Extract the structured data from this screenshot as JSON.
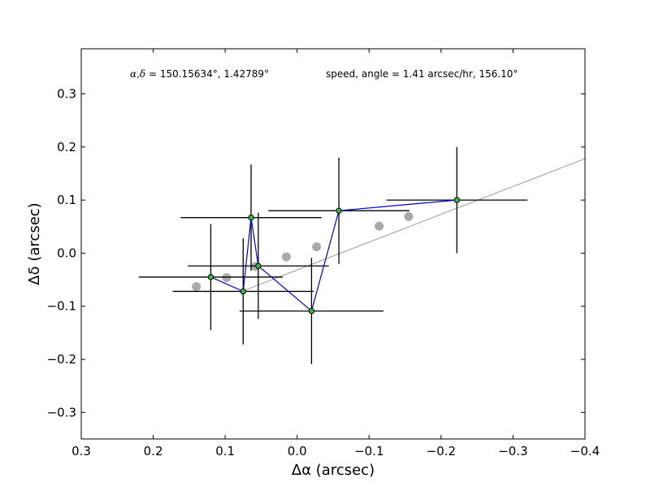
{
  "chart_data": {
    "type": "scatter",
    "xlabel": "Δα (arcsec)",
    "ylabel": "Δδ (arcsec)",
    "xlim": [
      0.3,
      -0.4
    ],
    "ylim": [
      -0.35,
      0.385
    ],
    "x_axis_inverted": true,
    "grid": false,
    "x_ticks": [
      0.3,
      0.2,
      0.1,
      0.0,
      -0.1,
      -0.2,
      -0.3,
      -0.4
    ],
    "x_tick_labels": [
      "0.3",
      "0.2",
      "0.1",
      "0.0",
      "−0.1",
      "−0.2",
      "−0.3",
      "−0.4"
    ],
    "y_ticks": [
      -0.3,
      -0.2,
      -0.1,
      0.0,
      0.1,
      0.2,
      0.3
    ],
    "y_tick_labels": [
      "−0.3",
      "−0.2",
      "−0.1",
      "0.0",
      "0.1",
      "0.2",
      "0.3"
    ],
    "annotations": [
      {
        "id": "coords",
        "text": "α,δ = 150.15634°, 1.42789°"
      },
      {
        "id": "speed",
        "text": "speed, angle = 1.41 arcsec/hr, 156.10°"
      }
    ],
    "fit_line": {
      "color": "#999999",
      "points": [
        [
          0.075,
          -0.071
        ],
        [
          -0.4,
          0.178
        ]
      ]
    },
    "model_points": {
      "color": "#aaaaaa",
      "points": [
        [
          0.14,
          -0.063
        ],
        [
          0.098,
          -0.046
        ],
        [
          0.058,
          -0.025
        ],
        [
          0.015,
          -0.007
        ],
        [
          -0.027,
          0.012
        ],
        [
          -0.114,
          0.051
        ],
        [
          -0.155,
          0.069
        ]
      ]
    },
    "measured": {
      "line_color": "#0000cc",
      "marker_color": "#33bb44",
      "errorbar_color": "#000000",
      "points": [
        {
          "x": 0.12,
          "y": -0.045,
          "xerr": 0.1,
          "yerr": 0.1
        },
        {
          "x": 0.075,
          "y": -0.072,
          "xerr": 0.098,
          "yerr": 0.1
        },
        {
          "x": 0.064,
          "y": 0.067,
          "xerr": 0.098,
          "yerr": 0.1
        },
        {
          "x": 0.054,
          "y": -0.024,
          "xerr": 0.098,
          "yerr": 0.1
        },
        {
          "x": -0.02,
          "y": -0.109,
          "xerr": 0.1,
          "yerr": 0.1
        },
        {
          "x": -0.058,
          "y": 0.08,
          "xerr": 0.098,
          "yerr": 0.1
        },
        {
          "x": -0.222,
          "y": 0.1,
          "xerr": 0.098,
          "yerr": 0.1
        }
      ]
    }
  }
}
